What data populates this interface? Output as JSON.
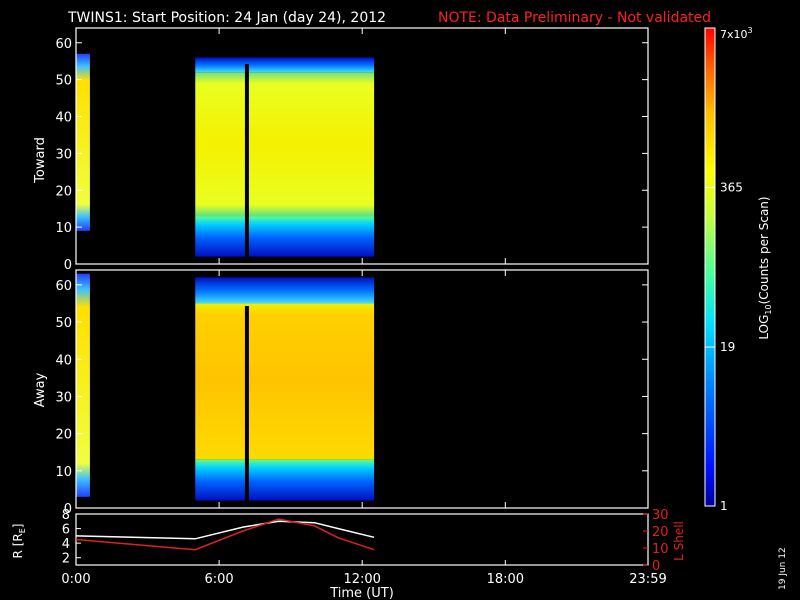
{
  "header": {
    "title": "TWINS1: Start Position: 24 Jan (day  24), 2012",
    "note": "NOTE: Data Preliminary - Not validated"
  },
  "footer": {
    "date_stamp": "19 Jun 12"
  },
  "colors": {
    "background": "#000000",
    "axes": "#ffffff",
    "note": "#ff2020",
    "r_line": "#ffffff",
    "lshell_line": "#e02020"
  },
  "chart_data": [
    {
      "type": "heatmap",
      "panel": "toward",
      "ylabel": "Toward",
      "xlabel": "",
      "xlim": [
        "0:00",
        "23:59"
      ],
      "ylim": [
        0,
        64
      ],
      "y_ticks": [
        "0",
        "10",
        "20",
        "30",
        "40",
        "50",
        "60"
      ],
      "data_blocks": [
        {
          "t_start": "0:00",
          "t_end": "0:35",
          "y_bottom": 9,
          "y_top": 57,
          "level": "mid-high"
        },
        {
          "t_start": "5:00",
          "t_end": "12:30",
          "y_bottom": 2,
          "y_top": 56,
          "core_bottom": 13,
          "core_top": 52,
          "core_level": 365
        }
      ],
      "data_gap": {
        "t_start": "7:05",
        "t_end": "7:15"
      }
    },
    {
      "type": "heatmap",
      "panel": "away",
      "ylabel": "Away",
      "xlabel": "",
      "xlim": [
        "0:00",
        "23:59"
      ],
      "ylim": [
        0,
        64
      ],
      "y_ticks": [
        "0",
        "10",
        "20",
        "30",
        "40",
        "50",
        "60"
      ],
      "data_blocks": [
        {
          "t_start": "0:00",
          "t_end": "0:35",
          "y_bottom": 3,
          "y_top": 63,
          "level": "mid-high"
        },
        {
          "t_start": "5:00",
          "t_end": "12:30",
          "y_bottom": 2,
          "y_top": 62,
          "core_bottom": 13,
          "core_top": 55,
          "core_level": 1000
        }
      ],
      "data_gap": {
        "t_start": "7:05",
        "t_end": "7:15"
      }
    },
    {
      "type": "line",
      "panel": "orbit",
      "xlabel": "Time (UT)",
      "x_ticks": [
        "0:00",
        "6:00",
        "12:00",
        "18:00",
        "23:59"
      ],
      "ylabel_left": "R [R",
      "ylabel_left_sub": "E",
      "ylabel_left_end": "]",
      "ylabel_right": "L Shell",
      "ylim_left": [
        1,
        8
      ],
      "y_ticks_left": [
        "2",
        "4",
        "6",
        "8"
      ],
      "ylim_right": [
        0,
        30
      ],
      "y_ticks_right": [
        "0",
        "10",
        "20",
        "30"
      ],
      "series": [
        {
          "axis": "left",
          "color": "#ffffff",
          "x": [
            "0:00",
            "5:00",
            "7:00",
            "8:30",
            "10:00",
            "11:00",
            "12:30"
          ],
          "values": [
            5.0,
            4.6,
            6.2,
            7.0,
            6.8,
            6.0,
            4.8
          ]
        },
        {
          "axis": "right",
          "color": "#e02020",
          "x": [
            "0:00",
            "5:00",
            "7:00",
            "8:30",
            "10:00",
            "11:00",
            "12:30"
          ],
          "values": [
            15,
            9,
            20,
            27,
            23,
            16,
            9
          ]
        }
      ]
    },
    {
      "type": "heatmap",
      "panel": "colorbar",
      "colorbar_label_main": "LOG",
      "colorbar_label_sub": "10",
      "colorbar_label_end": "(Counts per Scan)",
      "colorbar_scale": "log",
      "colorbar_range": [
        1,
        7000
      ],
      "colorbar_ticks": [
        "1",
        "19",
        "365"
      ],
      "colorbar_top_label": "7x10",
      "colorbar_top_exp": "3"
    }
  ]
}
